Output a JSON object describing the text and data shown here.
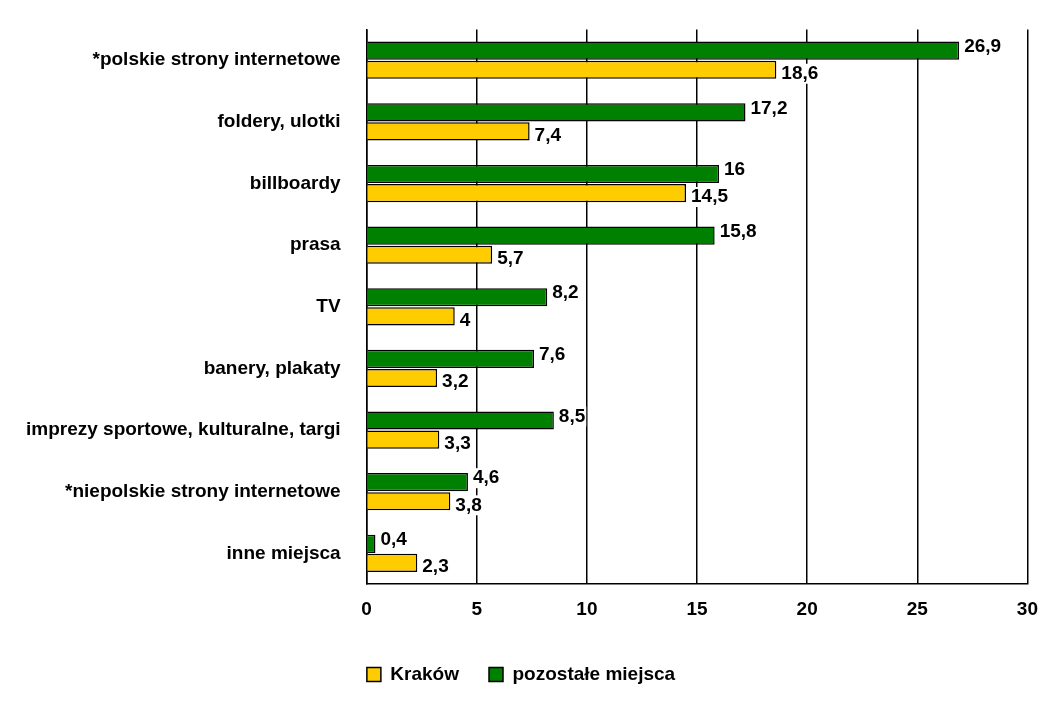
{
  "chart_data": {
    "type": "bar",
    "orientation": "horizontal",
    "categories": [
      "*polskie strony internetowe",
      "foldery, ulotki",
      "billboardy",
      "prasa",
      "TV",
      "banery, plakaty",
      "imprezy sportowe, kulturalne, targi",
      "*niepolskie strony internetowe",
      "inne miejsca"
    ],
    "series": [
      {
        "name": "Kraków",
        "color": "#ffcc00",
        "values": [
          18.6,
          7.4,
          14.5,
          5.7,
          4,
          3.2,
          3.3,
          3.8,
          2.3
        ],
        "value_labels": [
          "18,6",
          "7,4",
          "14,5",
          "5,7",
          "4",
          "3,2",
          "3,3",
          "3,8",
          "2,3"
        ]
      },
      {
        "name": "pozostałe miejsca",
        "color": "#008000",
        "values": [
          26.9,
          17.2,
          16,
          15.8,
          8.2,
          7.6,
          8.5,
          4.6,
          0.4
        ],
        "value_labels": [
          "26,9",
          "17,2",
          "16",
          "15,8",
          "8,2",
          "7,6",
          "8,5",
          "4,6",
          "0,4"
        ]
      }
    ],
    "xlim": [
      0,
      30
    ],
    "xticks": [
      0,
      5,
      10,
      15,
      20,
      25,
      30
    ],
    "grid": "x",
    "legend": "bottom"
  }
}
